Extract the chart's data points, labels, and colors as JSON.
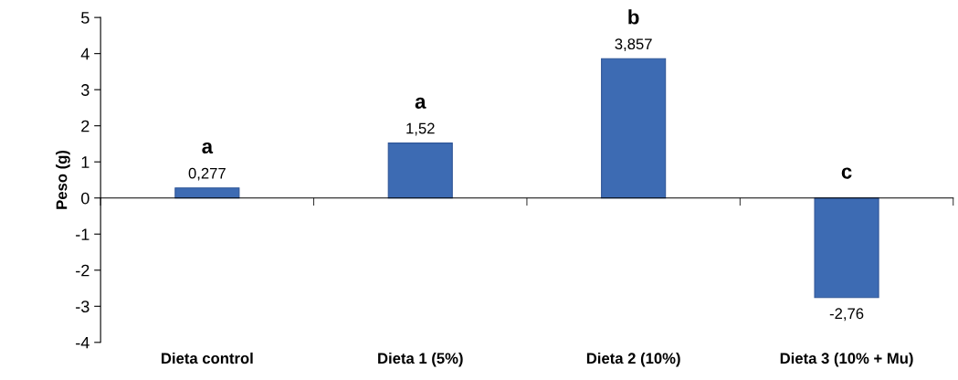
{
  "chart_data": {
    "type": "bar",
    "ylabel": "Peso (g)",
    "categories": [
      "Dieta control",
      "Dieta 1 (5%)",
      "Dieta 2 (10%)",
      "Dieta 3 (10% + Mu)"
    ],
    "values": [
      0.277,
      1.52,
      3.857,
      -2.76
    ],
    "value_labels": [
      "0,277",
      "1,52",
      "3,857",
      "-2,76"
    ],
    "color": "#3d6bb3",
    "ylim": [
      -4,
      5
    ],
    "yticks": [
      -4,
      -3,
      -2,
      -1,
      0,
      1,
      2,
      3,
      4,
      5
    ],
    "legend": false,
    "annotations": [
      "a",
      "a",
      "b",
      "c"
    ]
  }
}
